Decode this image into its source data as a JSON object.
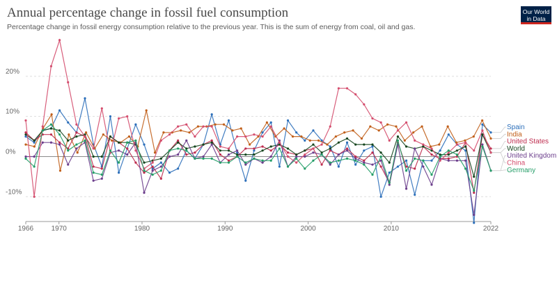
{
  "header": {
    "title": "Annual percentage change in fossil fuel consumption",
    "subtitle": "Percentage change in fossil energy consumption relative to the previous year. This is the sum of energy from coal, oil and gas.",
    "logo_line1": "Our World",
    "logo_line2": "in Data"
  },
  "chart_data": {
    "type": "line",
    "title": "Annual percentage change in fossil fuel consumption",
    "subtitle": "Percentage change in fossil energy consumption relative to the previous year. This is the sum of energy from coal, oil and gas.",
    "xlim": [
      1966,
      2022
    ],
    "ylim": [
      -16,
      30
    ],
    "y_ticks": [
      -10,
      0,
      10,
      20
    ],
    "y_tick_labels": [
      "-10%",
      "0%",
      "10%",
      "20%"
    ],
    "x_ticks": [
      1966,
      1970,
      1980,
      1990,
      2000,
      2010,
      2022
    ],
    "x_tick_labels": [
      "1966",
      "1970",
      "1980",
      "1990",
      "2000",
      "2010",
      "2022"
    ],
    "grid": true,
    "legend_position": "right",
    "series": [
      {
        "name": "Spain",
        "color": "#2c6fba",
        "values": [
          5,
          3.5,
          6.5,
          7,
          11.5,
          8.5,
          6,
          14.5,
          3,
          -2.5,
          10,
          -4,
          2,
          8,
          3,
          -3,
          -1.5,
          -4,
          -3,
          1.5,
          -0.5,
          3,
          10.5,
          3,
          9,
          1,
          -6,
          1.5,
          6,
          8.5,
          -2.5,
          9,
          6,
          4,
          6.5,
          4,
          2.5,
          -2.5,
          3.5,
          -2,
          1.5,
          2.5,
          -10,
          -4,
          -2.5,
          -1,
          -9.5,
          -1,
          -1,
          1.5,
          5.5,
          3,
          1.5,
          -16.5,
          8,
          6
        ]
      },
      {
        "name": "India",
        "color": "#c15f1a",
        "values": [
          3,
          2.5,
          7,
          10.5,
          -3.5,
          5.5,
          1,
          6,
          2,
          5.5,
          4,
          3.5,
          5,
          2.5,
          11.5,
          1,
          6,
          6,
          6.5,
          6,
          7.5,
          7.5,
          8,
          8,
          6.5,
          7,
          3,
          5,
          8.5,
          5,
          7,
          5,
          5,
          4,
          4,
          3,
          5,
          6,
          6.5,
          4.5,
          7.5,
          6.5,
          8,
          7.5,
          4,
          6,
          7.5,
          2.5,
          3,
          7.5,
          3.5,
          4,
          5,
          9,
          4.5
        ]
      },
      {
        "name": "United States",
        "color": "#be2c4e",
        "values": [
          6,
          4,
          5.5,
          5.5,
          3.5,
          2,
          6,
          5,
          -2.5,
          -3,
          5,
          3.5,
          2,
          -1.5,
          -4,
          -2.5,
          -5.5,
          1.5,
          4,
          0.5,
          1,
          3,
          4,
          0.5,
          -1,
          0,
          2,
          2,
          2.5,
          1.5,
          3,
          1,
          0.5,
          1.5,
          2,
          -2,
          1.5,
          0.5,
          2,
          0,
          -1,
          1,
          -2.5,
          -6.5,
          3.5,
          -2.5,
          -3,
          2.5,
          0.5,
          -0.5,
          -0.5,
          0,
          3.5,
          -9,
          5.5,
          2
        ]
      },
      {
        "name": "World",
        "color": "#16461f",
        "values": [
          5.5,
          4,
          6.5,
          7,
          6.5,
          4,
          5,
          5.5,
          0,
          0,
          5,
          3.5,
          3.5,
          3,
          -1.5,
          -1,
          -0.5,
          1.5,
          3.5,
          2,
          2.5,
          3,
          3.5,
          1.5,
          1.5,
          0.5,
          0.5,
          0.5,
          1.5,
          2.5,
          3,
          2,
          0.5,
          1.5,
          3,
          1,
          2,
          3.5,
          4.5,
          3,
          3,
          3,
          1,
          -1.5,
          5,
          2.5,
          2,
          2.5,
          1.5,
          0.5,
          0.5,
          1.5,
          2.5,
          -5,
          5.5,
          1
        ]
      },
      {
        "name": "United Kingdom",
        "color": "#6c3e8c",
        "values": [
          0,
          0,
          3.5,
          3.5,
          3,
          -2,
          2,
          3.5,
          -6,
          -5.5,
          1,
          1.5,
          0.5,
          3.5,
          -9,
          -3.5,
          -2.5,
          0,
          0.5,
          4,
          -0.5,
          0,
          3,
          -1.5,
          0.5,
          1.5,
          -2,
          -0.5,
          -1.5,
          0,
          4,
          -2.5,
          0,
          0,
          1,
          0.5,
          -2,
          0.5,
          1.5,
          -0.5,
          -1.5,
          -2,
          -1,
          -7,
          3,
          -8,
          2,
          -2.5,
          -7,
          -0.5,
          -1,
          -1,
          -1,
          -14.5,
          3,
          -3.5
        ]
      },
      {
        "name": "China",
        "color": "#d44d6d",
        "values": [
          9,
          -10,
          7.5,
          22.5,
          29,
          18.5,
          8,
          5,
          2,
          12,
          1,
          9.5,
          10,
          1.5,
          -3,
          -1.5,
          4,
          5.5,
          7.5,
          8,
          5,
          7.5,
          7.5,
          2.5,
          2,
          5,
          5,
          5.5,
          5,
          7.5,
          3.5,
          0,
          -1.5,
          0.5,
          2,
          3,
          7.5,
          17,
          17,
          15.5,
          13,
          9.5,
          8.5,
          4,
          6.5,
          8.5,
          4,
          3,
          2,
          -1,
          1,
          3,
          3.5,
          1.5,
          6.5,
          1
        ]
      },
      {
        "name": "Germany",
        "color": "#249e68",
        "values": [
          -0.5,
          -2.5,
          6.5,
          8,
          5.5,
          1.5,
          3,
          4,
          -4,
          -4.5,
          1.5,
          -1.5,
          3.5,
          4,
          -3.5,
          -4.5,
          -3.5,
          1.5,
          2,
          1.5,
          -0.5,
          -0.5,
          -0.5,
          -1.5,
          -1.5,
          0,
          -1.5,
          -0.5,
          -1,
          -1,
          2,
          -2.5,
          -0.5,
          -3,
          -1,
          0.5,
          -1.5,
          -1,
          -0.5,
          -1,
          -2,
          -4.5,
          0,
          -6.5,
          4,
          -3.5,
          -0.5,
          -1,
          -4.5,
          0,
          1.5,
          0.5,
          -3,
          -8.5,
          2.5,
          -3.5
        ]
      }
    ]
  }
}
